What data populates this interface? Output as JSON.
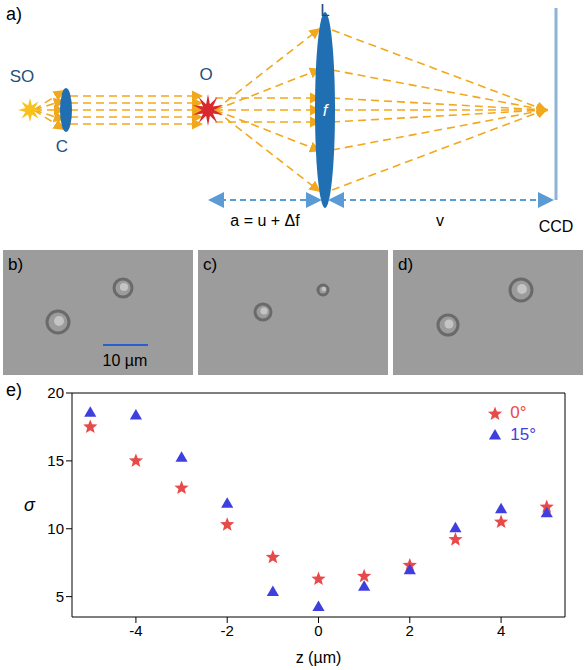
{
  "diagram": {
    "panel_label": "a)",
    "labels": {
      "source": "SO",
      "condenser": "C",
      "object": "O",
      "lens": "L",
      "focal": "f",
      "object_distance": "a = u + Δf",
      "image_distance": "v",
      "detector": "CCD"
    }
  },
  "images": [
    {
      "panel_label": "b)",
      "scale_bar": "10 µm"
    },
    {
      "panel_label": "c)"
    },
    {
      "panel_label": "d)"
    }
  ],
  "chart_data": {
    "type": "scatter",
    "panel_label": "e)",
    "x_label": "z (µm)",
    "y_label": "σ",
    "xlim": [
      -5.4,
      5.4
    ],
    "xticks": [
      -4,
      -2,
      0,
      2,
      4
    ],
    "ylim": [
      3.5,
      20
    ],
    "yticks": [
      5,
      10,
      15,
      20
    ],
    "legend": "upper right",
    "x": [
      -5,
      -4,
      -3,
      -2,
      -1,
      0,
      1,
      2,
      3,
      4,
      5
    ],
    "series": [
      {
        "name": "0°",
        "color": "#e84a4a",
        "marker": "star",
        "values": [
          17.5,
          15,
          13,
          10.3,
          7.9,
          6.3,
          6.5,
          7.3,
          9.2,
          10.5,
          11.6
        ]
      },
      {
        "name": "15°",
        "color": "#3f3fe0",
        "marker": "triangle",
        "values": [
          18.5,
          18.3,
          15.2,
          11.8,
          5.3,
          4.2,
          5.7,
          6.9,
          10,
          11.4,
          11.1
        ]
      }
    ]
  }
}
